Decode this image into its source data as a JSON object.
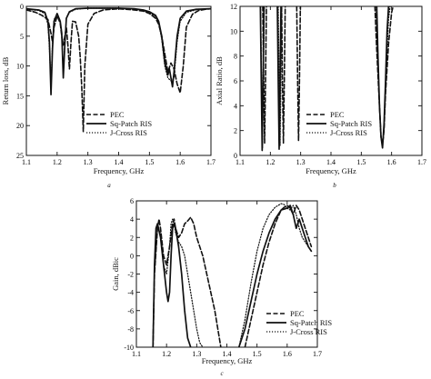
{
  "chart_data": [
    {
      "type": "line",
      "panel_label": "a",
      "xlabel": "Frequency, GHz",
      "ylabel": "Return loss, dB",
      "xlim": [
        1.1,
        1.7
      ],
      "ylim": [
        0,
        25
      ],
      "y_reversed": true,
      "xticks": [
        "1.1",
        "1.2",
        "1.3",
        "1.4",
        "1.5",
        "1.6",
        "1.7"
      ],
      "yticks": [
        "0",
        "5",
        "10",
        "15",
        "20",
        "25"
      ],
      "grid": false,
      "legend": "bottom-center",
      "series": [
        {
          "name": "PEC",
          "style": "dashed",
          "x": [
            1.1,
            1.13,
            1.15,
            1.17,
            1.18,
            1.185,
            1.19,
            1.2,
            1.21,
            1.215,
            1.22,
            1.23,
            1.235,
            1.24,
            1.245,
            1.25,
            1.26,
            1.27,
            1.275,
            1.28,
            1.285,
            1.29,
            1.3,
            1.32,
            1.35,
            1.4,
            1.45,
            1.48,
            1.5,
            1.52,
            1.53,
            1.54,
            1.55,
            1.56,
            1.57,
            1.58,
            1.59,
            1.6,
            1.61,
            1.62,
            1.64,
            1.66,
            1.68,
            1.7
          ],
          "y": [
            0.6,
            1.0,
            1.5,
            2.2,
            4.5,
            6.0,
            3.5,
            1.6,
            2.8,
            5.0,
            6.5,
            3.5,
            6.5,
            10.5,
            6.0,
            2.5,
            2.6,
            5.0,
            8.5,
            13.5,
            21.0,
            10.0,
            3.0,
            1.2,
            0.6,
            0.4,
            0.6,
            0.8,
            1.2,
            2.0,
            3.0,
            5.0,
            8.0,
            11.0,
            9.5,
            10.5,
            13.0,
            14.5,
            10.0,
            3.5,
            1.3,
            0.7,
            0.5,
            0.4
          ]
        },
        {
          "name": "Sq-Patch RIS",
          "style": "solid",
          "x": [
            1.1,
            1.14,
            1.16,
            1.17,
            1.175,
            1.18,
            1.185,
            1.19,
            1.2,
            1.21,
            1.215,
            1.22,
            1.225,
            1.23,
            1.24,
            1.26,
            1.3,
            1.35,
            1.4,
            1.45,
            1.48,
            1.5,
            1.52,
            1.53,
            1.54,
            1.55,
            1.56,
            1.565,
            1.57,
            1.575,
            1.58,
            1.59,
            1.6,
            1.62,
            1.65,
            1.7
          ],
          "y": [
            0.4,
            0.6,
            1.0,
            2.5,
            6.0,
            14.8,
            7.0,
            2.5,
            1.2,
            2.5,
            4.5,
            12.0,
            6.5,
            2.0,
            0.9,
            0.4,
            0.3,
            0.3,
            0.3,
            0.4,
            0.6,
            0.9,
            1.5,
            2.5,
            5.0,
            9.5,
            11.5,
            10.5,
            12.0,
            13.5,
            11.0,
            5.0,
            2.0,
            0.8,
            0.5,
            0.4
          ]
        },
        {
          "name": "J-Cross RIS",
          "style": "dotted",
          "x": [
            1.1,
            1.14,
            1.16,
            1.17,
            1.175,
            1.18,
            1.185,
            1.19,
            1.2,
            1.21,
            1.215,
            1.22,
            1.225,
            1.23,
            1.24,
            1.26,
            1.3,
            1.35,
            1.4,
            1.45,
            1.48,
            1.5,
            1.52,
            1.53,
            1.54,
            1.55,
            1.56,
            1.57,
            1.58,
            1.59,
            1.6,
            1.62,
            1.65,
            1.7
          ],
          "y": [
            0.5,
            0.7,
            1.2,
            3.0,
            7.0,
            13.5,
            6.0,
            2.2,
            1.3,
            2.5,
            5.0,
            11.5,
            6.0,
            2.0,
            1.0,
            0.5,
            0.3,
            0.3,
            0.3,
            0.4,
            0.7,
            1.0,
            1.7,
            2.8,
            5.5,
            10.0,
            12.0,
            12.5,
            12.0,
            6.0,
            2.5,
            1.0,
            0.6,
            0.4
          ]
        }
      ]
    },
    {
      "type": "line",
      "panel_label": "b",
      "xlabel": "Frequency, GHz",
      "ylabel": "Axial Ratio, dB",
      "xlim": [
        1.1,
        1.7
      ],
      "ylim": [
        0,
        12
      ],
      "xticks": [
        "1.1",
        "1.2",
        "1.3",
        "1.4",
        "1.5",
        "1.6",
        "1.7"
      ],
      "yticks": [
        "0",
        "2",
        "4",
        "6",
        "8",
        "10",
        "12"
      ],
      "grid": false,
      "legend": "bottom-center",
      "series": [
        {
          "name": "PEC",
          "style": "dashed",
          "x": [
            1.175,
            1.178,
            1.181,
            1.184,
            1.187,
            null,
            1.237,
            1.24,
            1.243,
            1.246,
            1.249,
            null,
            1.287,
            1.29,
            1.293,
            1.296,
            1.299,
            null,
            1.545,
            1.55,
            1.56,
            1.565,
            1.57,
            1.575,
            1.58,
            1.59,
            1.6,
            1.605
          ],
          "y": [
            12,
            6,
            1.0,
            6,
            12,
            null,
            12,
            6,
            1.0,
            6,
            12,
            null,
            12,
            6,
            1.2,
            6,
            12,
            null,
            12,
            9,
            4,
            1.5,
            0.8,
            2,
            5,
            9,
            11.5,
            12
          ]
        },
        {
          "name": "Sq-Patch RIS",
          "style": "solid",
          "x": [
            1.167,
            1.17,
            1.173,
            1.176,
            1.179,
            null,
            1.223,
            1.226,
            1.229,
            1.232,
            1.235,
            null,
            1.551,
            1.555,
            1.56,
            1.565,
            1.57,
            1.575,
            1.58,
            1.585,
            1.59
          ],
          "y": [
            12,
            6,
            0.4,
            6,
            12,
            null,
            12,
            6,
            0.5,
            6,
            12,
            null,
            12,
            8,
            4,
            1.5,
            0.6,
            2.5,
            6,
            10,
            12
          ]
        },
        {
          "name": "J-Cross RIS",
          "style": "dotted",
          "x": [
            1.168,
            1.171,
            1.174,
            1.177,
            1.18,
            null,
            1.226,
            1.229,
            1.232,
            1.235,
            1.238,
            null,
            1.549,
            1.555,
            1.56,
            1.565,
            1.57,
            1.575,
            1.58,
            1.585,
            1.59,
            1.595
          ],
          "y": [
            12,
            6,
            0.6,
            6,
            12,
            null,
            12,
            6,
            0.8,
            6,
            12,
            null,
            12,
            8,
            4,
            1.6,
            0.8,
            2,
            5,
            8.5,
            11,
            12
          ]
        }
      ]
    },
    {
      "type": "line",
      "panel_label": "c",
      "xlabel": "Frequency, GHz",
      "ylabel": "Gain, dBic",
      "xlim": [
        1.1,
        1.7
      ],
      "ylim": [
        -10,
        6
      ],
      "xticks": [
        "1.1",
        "1.2",
        "1.3",
        "1.4",
        "1.5",
        "1.6",
        "1.7"
      ],
      "yticks": [
        "-10",
        "-8",
        "-6",
        "-4",
        "-2",
        "0",
        "2",
        "4",
        "6"
      ],
      "grid": false,
      "legend": "bottom-right",
      "series": [
        {
          "name": "PEC",
          "style": "dashed",
          "x": [
            1.155,
            1.16,
            1.17,
            1.175,
            1.18,
            1.19,
            1.2,
            1.21,
            1.22,
            1.225,
            1.23,
            1.24,
            1.25,
            1.26,
            1.27,
            1.28,
            1.29,
            1.3,
            1.32,
            1.34,
            1.36,
            1.38,
            null,
            1.46,
            1.48,
            1.5,
            1.52,
            1.54,
            1.56,
            1.58,
            1.59,
            1.6,
            1.61,
            1.62,
            1.63,
            1.64,
            1.65,
            1.66,
            1.67,
            1.68
          ],
          "y": [
            -10,
            -2,
            3,
            4,
            3,
            0,
            -1,
            1,
            3.5,
            4,
            3,
            2,
            2.5,
            3.5,
            3.8,
            4.2,
            3.5,
            2,
            0,
            -3,
            -6,
            -10,
            null,
            -10,
            -7,
            -4,
            -1,
            1.5,
            3.5,
            5,
            5.3,
            5.5,
            5.2,
            4.5,
            5.5,
            5,
            4,
            3,
            2,
            1
          ]
        },
        {
          "name": "Sq-Patch RIS",
          "style": "solid",
          "x": [
            1.155,
            1.16,
            1.165,
            1.17,
            1.18,
            1.19,
            1.2,
            1.205,
            1.21,
            1.215,
            1.22,
            1.225,
            1.23,
            1.24,
            1.25,
            1.26,
            1.27,
            1.28,
            null,
            1.44,
            1.46,
            1.48,
            1.5,
            1.52,
            1.54,
            1.56,
            1.58,
            1.6,
            1.61,
            1.62,
            1.63,
            1.64,
            1.65,
            1.66,
            1.67,
            1.68
          ],
          "y": [
            -10,
            -1,
            3,
            3.5,
            2,
            -1,
            -4,
            -5,
            -4,
            0,
            3,
            3.5,
            3,
            1,
            -2,
            -6,
            -9,
            -10,
            null,
            -10,
            -8,
            -5,
            -2,
            0.5,
            2.5,
            4,
            5,
            5.2,
            5.5,
            4.5,
            3,
            4,
            3,
            2,
            1,
            0.5
          ]
        },
        {
          "name": "J-Cross RIS",
          "style": "dotted",
          "x": [
            1.155,
            1.16,
            1.17,
            1.18,
            1.19,
            1.2,
            1.21,
            1.215,
            1.22,
            1.225,
            1.23,
            1.24,
            1.25,
            1.26,
            1.27,
            1.28,
            1.29,
            1.3,
            1.31,
            1.32,
            null,
            1.44,
            1.46,
            1.48,
            1.5,
            1.52,
            1.54,
            1.56,
            1.58,
            1.59,
            1.6,
            1.61,
            1.62,
            1.63,
            1.64,
            1.65,
            1.66,
            1.67,
            1.68
          ],
          "y": [
            -10,
            -2,
            3,
            2.5,
            -1,
            -2,
            1,
            3.5,
            4,
            3.5,
            2.5,
            1.5,
            1,
            0,
            -2,
            -4,
            -6,
            -8,
            -9.5,
            -10,
            null,
            -10,
            -7,
            -3,
            0.5,
            3,
            4.5,
            5.3,
            5.7,
            5.6,
            5.2,
            5,
            5.5,
            4.5,
            3,
            2,
            1.5,
            1,
            0.5
          ]
        }
      ]
    }
  ]
}
